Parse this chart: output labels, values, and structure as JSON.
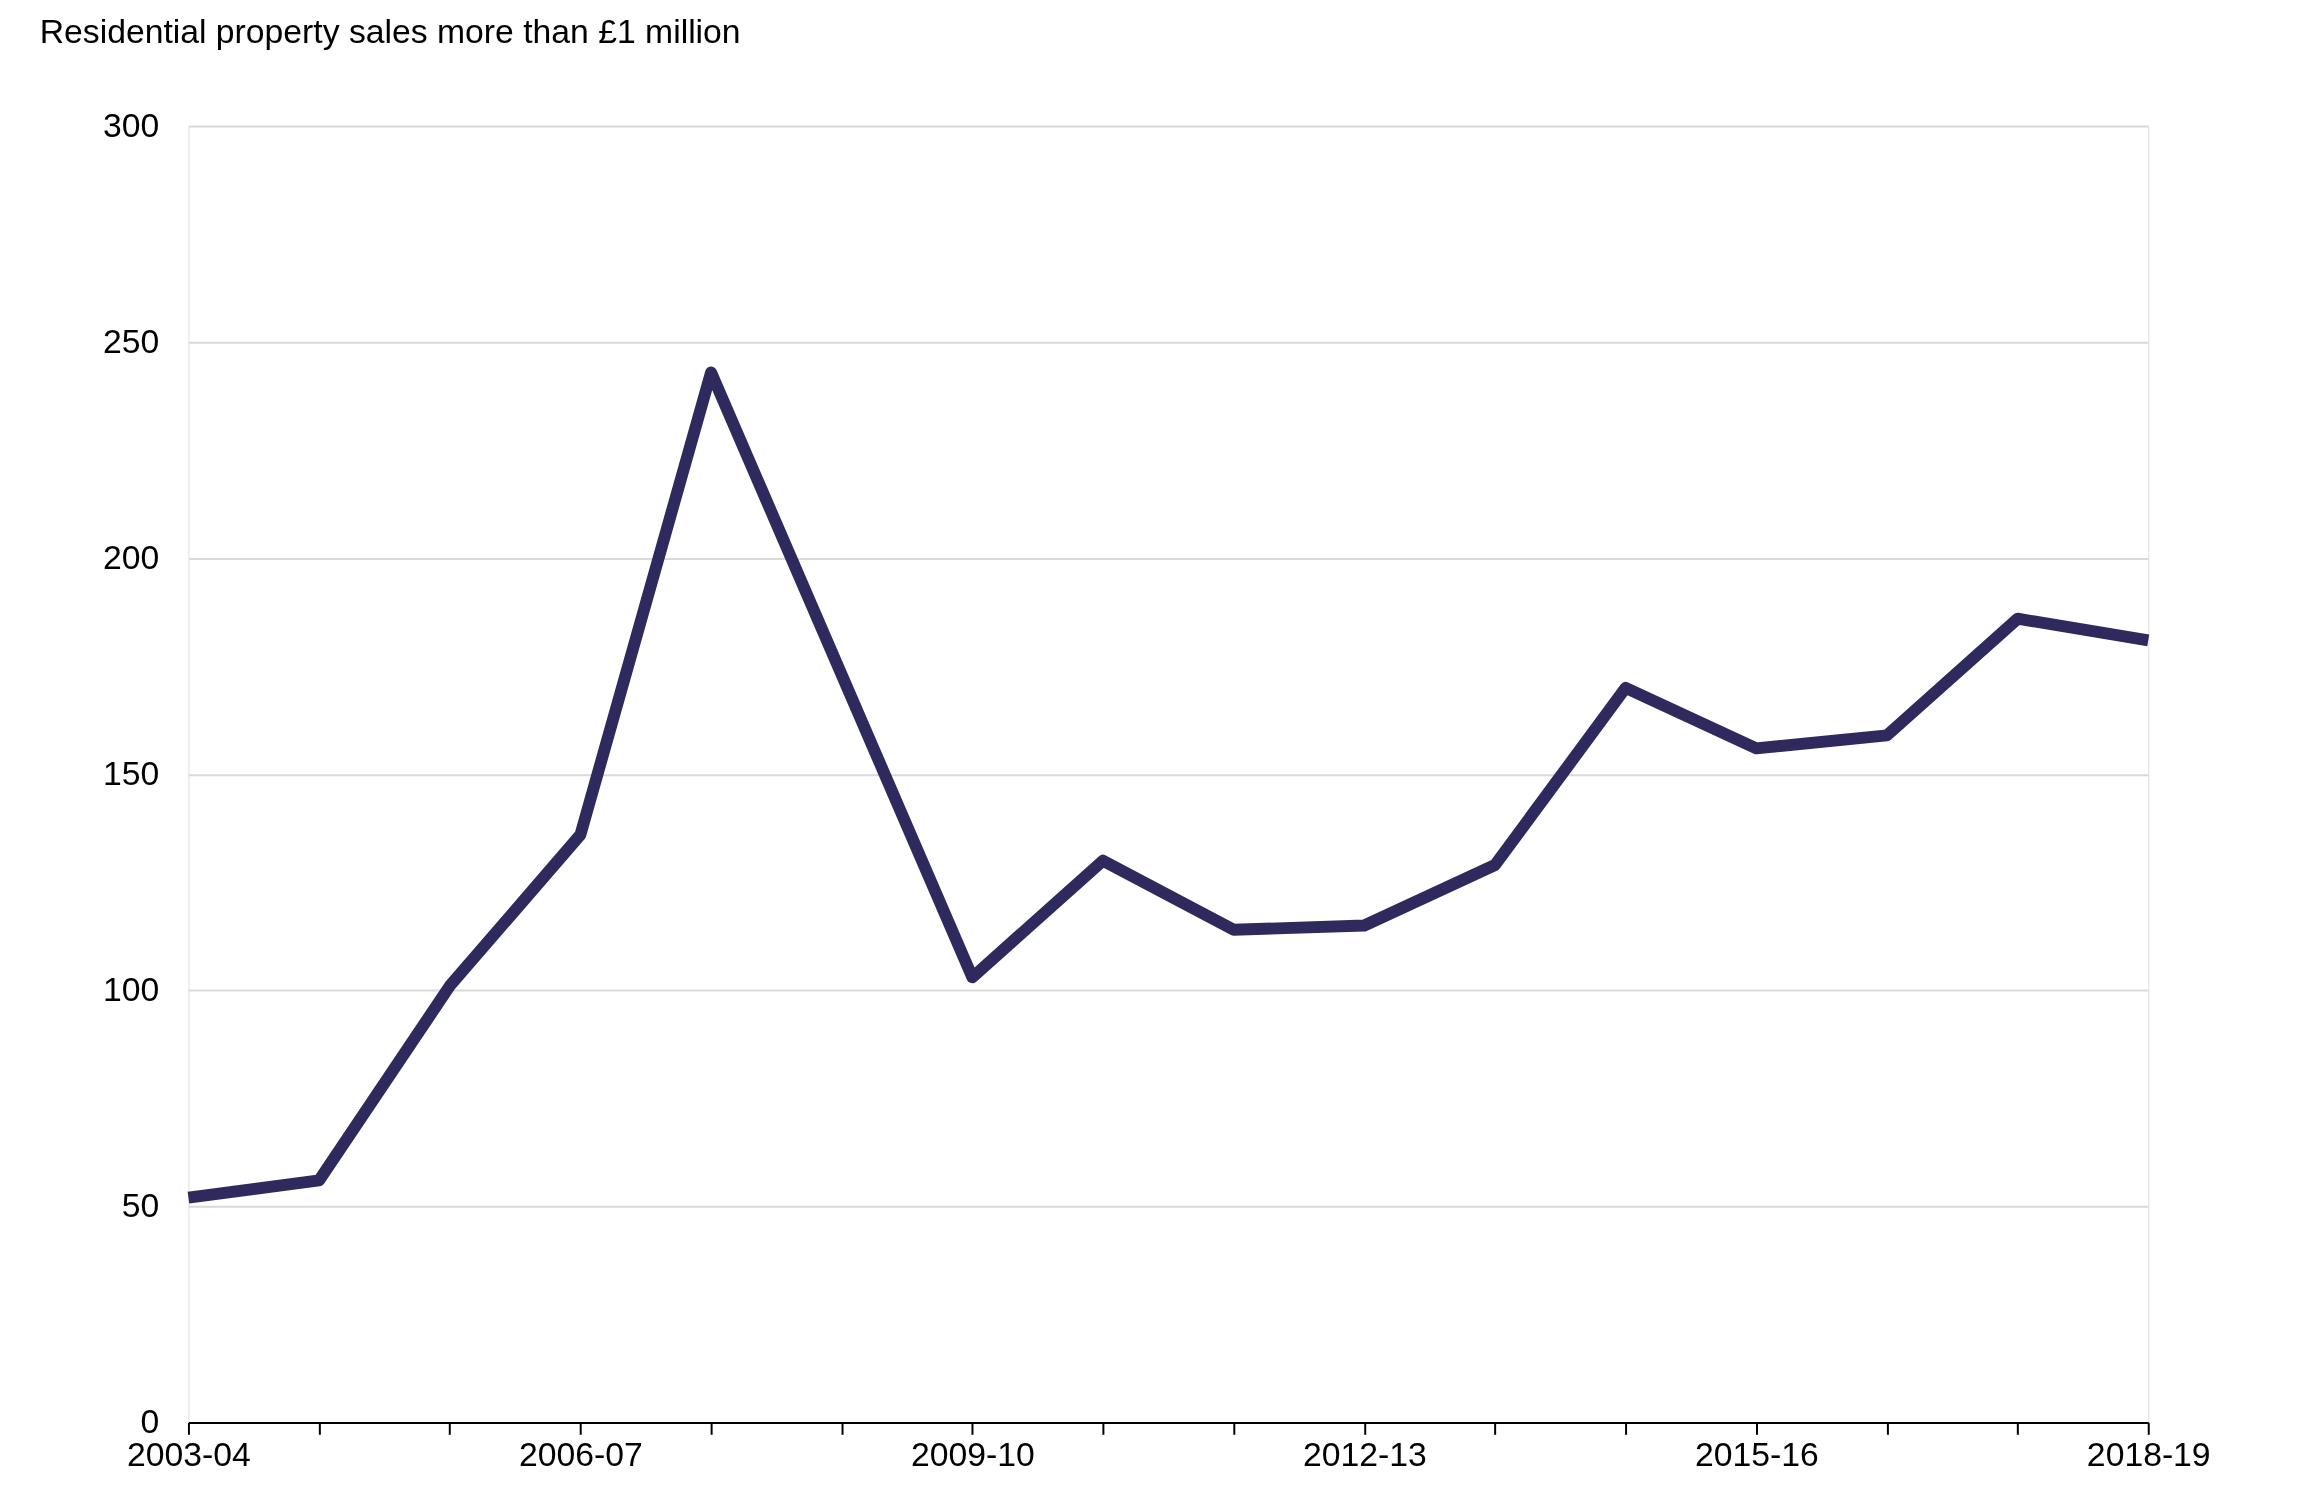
{
  "chart_data": {
    "type": "line",
    "title": "Residential property sales more than £1 million",
    "categories": [
      "2003-04",
      null,
      null,
      "2006-07",
      null,
      null,
      "2009-10",
      null,
      null,
      "2012-13",
      null,
      null,
      "2015-16",
      null,
      null,
      "2018-19"
    ],
    "series": [
      {
        "color": "#2e2a5e",
        "values": [
          52,
          56,
          101,
          136,
          243,
          173,
          103,
          130,
          114,
          115,
          129,
          170,
          156,
          159,
          186,
          181
        ]
      }
    ],
    "ylim": [
      0,
      300
    ],
    "yticks": [
      0,
      50,
      100,
      150,
      200,
      250,
      300
    ],
    "grid": "y",
    "marker": "none",
    "line_style": "solid"
  }
}
